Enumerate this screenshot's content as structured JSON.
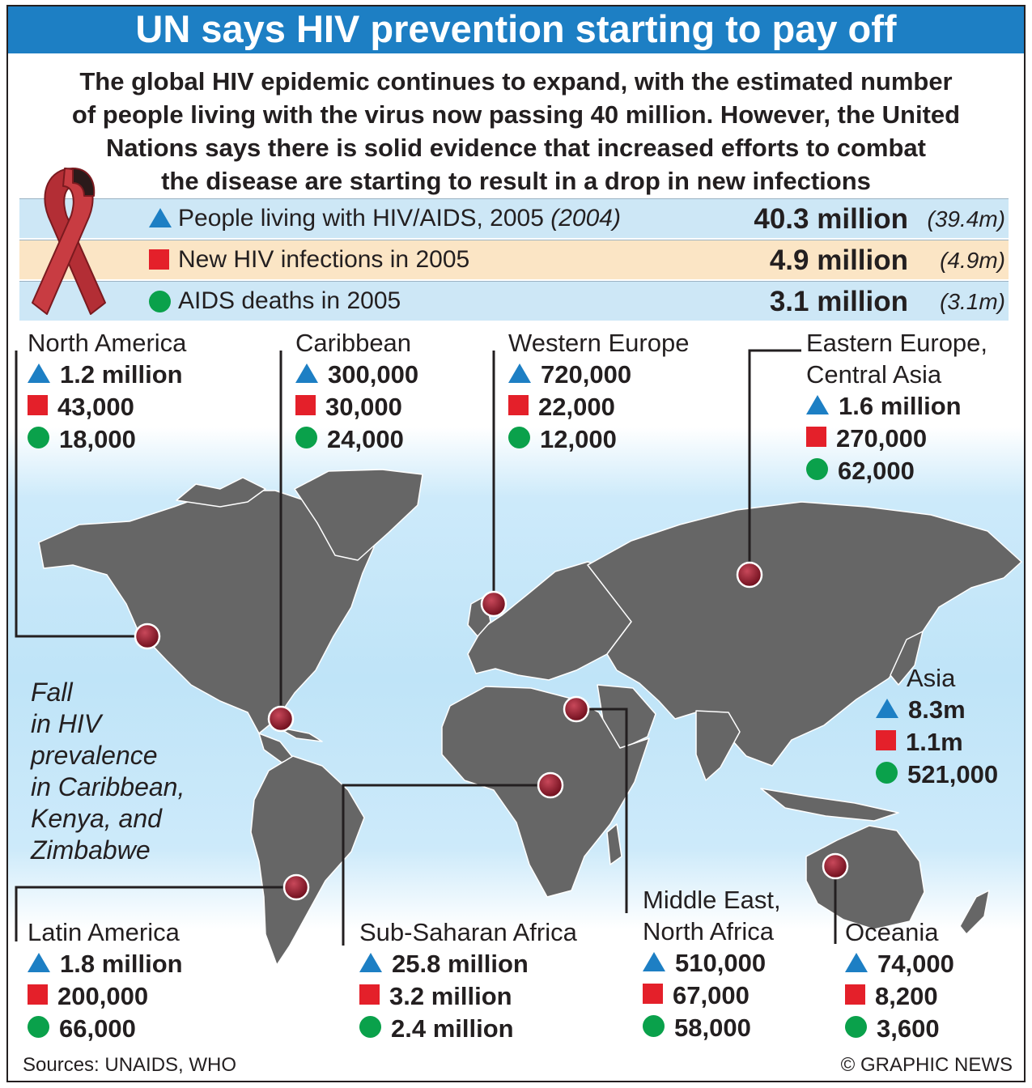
{
  "title": "UN says HIV prevention starting to pay off",
  "intro_lines": [
    "The global HIV epidemic continues to expand, with the estimated number",
    "of people living with the virus now passing 40 million. However, the United",
    "Nations says there is solid evidence that increased efforts to combat",
    "the disease are starting to result in a drop in new infections"
  ],
  "colors": {
    "title_bar": "#1d7fc4",
    "triangle": "#1d7fc4",
    "square": "#e4202a",
    "circle": "#0aa14b",
    "land": "#666666",
    "marker": "#8c1424",
    "ribbon": "#b32e35"
  },
  "legend_symbols": {
    "triangle": "people-living-with-hiv-aids",
    "square": "new-hiv-infections",
    "circle": "aids-deaths"
  },
  "global_stats": [
    {
      "symbol": "triangle",
      "label": "People living with HIV/AIDS, 2005",
      "label_prev": "(2004)",
      "value": "40.3 million",
      "prev": "(39.4m)"
    },
    {
      "symbol": "square",
      "label": "New HIV infections in 2005",
      "label_prev": "",
      "value": "4.9 million",
      "prev": "(4.9m)"
    },
    {
      "symbol": "circle",
      "label": "AIDS deaths in 2005",
      "label_prev": "",
      "value": "3.1 million",
      "prev": "(3.1m)"
    }
  ],
  "regions": {
    "north_america": {
      "name": "North America",
      "living": "1.2 million",
      "new": "43,000",
      "deaths": "18,000"
    },
    "caribbean": {
      "name": "Caribbean",
      "living": "300,000",
      "new": "30,000",
      "deaths": "24,000"
    },
    "western_europe": {
      "name": "Western Europe",
      "living": "720,000",
      "new": "22,000",
      "deaths": "12,000"
    },
    "eastern_europe": {
      "name_line1": "Eastern Europe,",
      "name_line2": "Central Asia",
      "living": "1.6 million",
      "new": "270,000",
      "deaths": "62,000"
    },
    "asia": {
      "name": "Asia",
      "living": "8.3m",
      "new": "1.1m",
      "deaths": "521,000"
    },
    "latin_america": {
      "name": "Latin America",
      "living": "1.8 million",
      "new": "200,000",
      "deaths": "66,000"
    },
    "sub_saharan_africa": {
      "name": "Sub-Saharan Africa",
      "living": "25.8 million",
      "new": "3.2 million",
      "deaths": "2.4 million"
    },
    "middle_east": {
      "name_line1": "Middle East,",
      "name_line2": "North Africa",
      "living": "510,000",
      "new": "67,000",
      "deaths": "58,000"
    },
    "oceania": {
      "name": "Oceania",
      "living": "74,000",
      "new": "8,200",
      "deaths": "3,600"
    }
  },
  "fall_note_lines": [
    "Fall",
    "in HIV",
    "prevalence",
    "in Caribbean,",
    "Kenya, and",
    "Zimbabwe"
  ],
  "sources": "Sources: UNAIDS, WHO",
  "credit": "© GRAPHIC NEWS"
}
